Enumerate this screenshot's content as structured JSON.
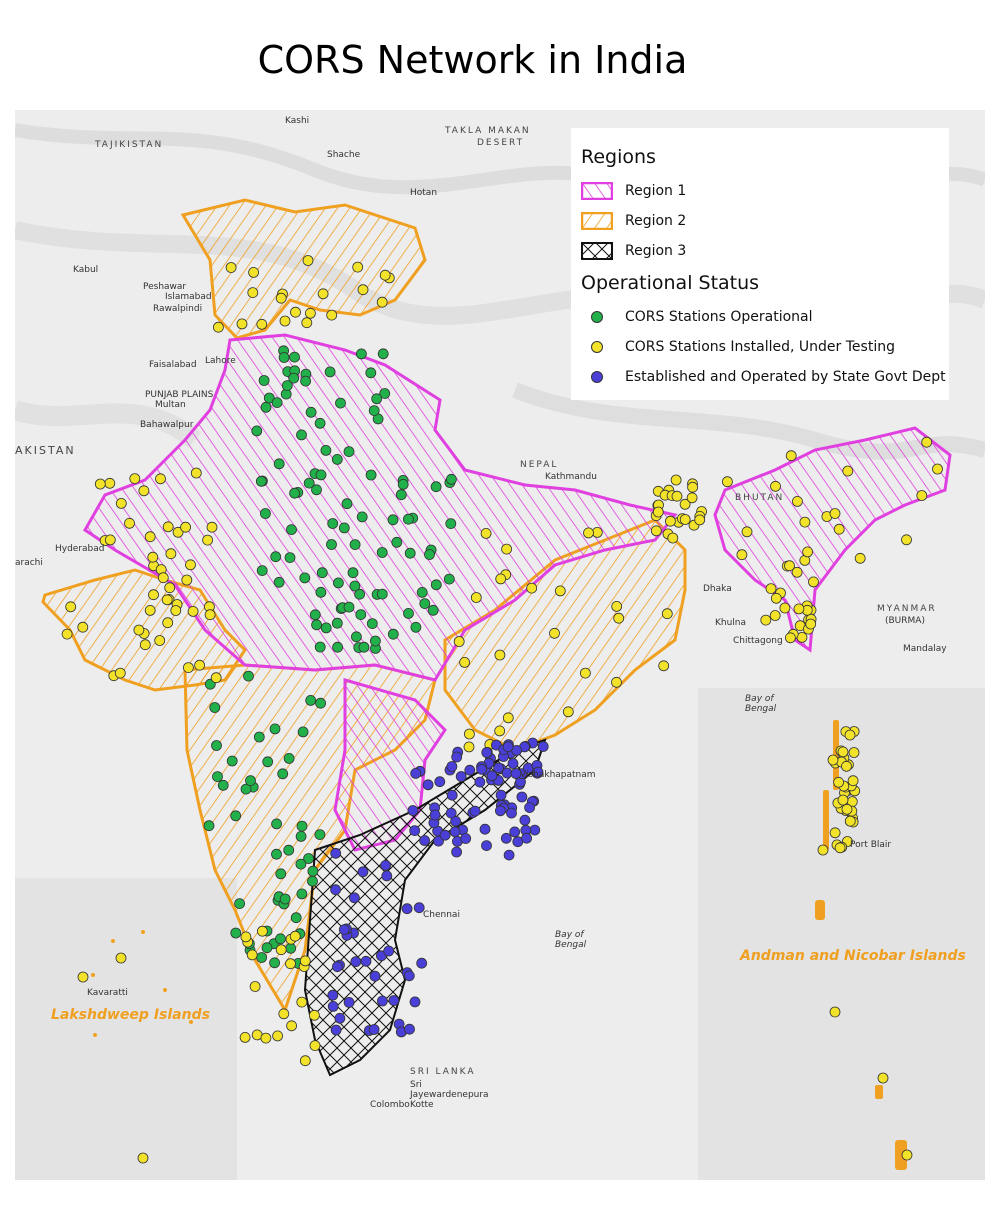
{
  "title": "CORS Network in India",
  "legend": {
    "regions_heading": "Regions",
    "regions": [
      {
        "label": "Region 1",
        "color": "#e040e0"
      },
      {
        "label": "Region 2",
        "color": "#f0a020"
      },
      {
        "label": "Region 3",
        "color": "#111111"
      }
    ],
    "status_heading": "Operational Status",
    "statuses": [
      {
        "label": "CORS Stations Operational",
        "color": "#22b04a"
      },
      {
        "label": "CORS Stations Installed, Under Testing",
        "color": "#f2e32a"
      },
      {
        "label": "Established and Operated by State Govt Dept",
        "color": "#4a3fd6"
      }
    ]
  },
  "inset_labels": {
    "andaman": "Andman and Nicobar Islands",
    "lakshadweep": "Lakshdweep Islands"
  },
  "basemap_labels": {
    "takla_makan": "TAKLA MAKAN",
    "desert": "DESERT",
    "tajikistan": "TAJIKISTAN",
    "kabul": "Kabul",
    "peshawar": "Peshawar",
    "islamabad": "Islamabad",
    "rawalpindi": "Rawalpindi",
    "faisalabad": "Faisalabad",
    "lahore": "Lahore",
    "punjab_plains": "PUNJAB PLAINS",
    "multan": "Multan",
    "pakistan": "AKISTAN",
    "bahawalpur": "Bahawalpur",
    "hyderabad": "Hyderabad",
    "karachi": "arachi",
    "nepal": "NEPAL",
    "kathmandu": "Kathmandu",
    "bhutan": "BHUTAN",
    "dhaka": "Dhaka",
    "khulna": "Khulna",
    "chittagong": "Chittagong",
    "myanmar": "MYANMAR",
    "burma": "(BURMA)",
    "bay_of_bengal_top": "Bay of Bengal",
    "bay_of_bengal": "Bay of Bengal",
    "visakhapatnam": "Vishakhapatnam",
    "chennai": "Chennai",
    "port_blair": "Port Blair",
    "sri_lanka": "SRI LANKA",
    "sri_jayewardenepura": "Sri Jayewardenepura Kotte",
    "colombo": "Colombo",
    "kavaratti": "Kavaratti",
    "mandalay": "Mandalay",
    "kashgar": "Kashi",
    "shache": "Shache",
    "hotan": "Hotan"
  }
}
